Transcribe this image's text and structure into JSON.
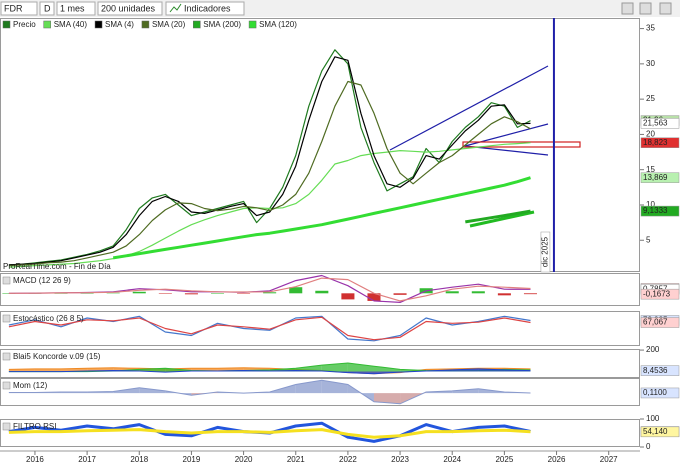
{
  "toolbar": {
    "symbol": "FDR",
    "mode": "D",
    "period": "1 mes",
    "units": "200 unidades",
    "indicators": "Indicadores"
  },
  "source": "ProRealTime.com - Fin de Día",
  "chart_data": [
    {
      "type": "line",
      "x": [
        2015.5,
        2015.75,
        2016,
        2016.25,
        2016.5,
        2016.75,
        2017,
        2017.25,
        2017.5,
        2017.75,
        2018,
        2018.25,
        2018.5,
        2018.75,
        2019,
        2019.25,
        2019.5,
        2019.75,
        2020,
        2020.25,
        2020.5,
        2020.75,
        2021,
        2021.25,
        2021.5,
        2021.75,
        2022,
        2022.25,
        2022.5,
        2022.75,
        2023,
        2023.25,
        2023.5,
        2023.75,
        2024,
        2024.25,
        2024.5,
        2024.75,
        2025,
        2025.25,
        2025.5
      ],
      "xlim": [
        2015.33,
        2027.6
      ],
      "xticks": [
        2016,
        2017,
        2018,
        2019,
        2020,
        2021,
        2022,
        2023,
        2024,
        2025,
        2026,
        2027
      ],
      "ylim": [
        0.5,
        36.5
      ],
      "yticks": [
        5,
        10,
        15,
        20,
        25,
        30,
        35
      ],
      "series": [
        {
          "name": "Precio",
          "color": "#1f7a1f",
          "style": "line",
          "values": [
            1.5,
            1.6,
            1.8,
            2.0,
            2.2,
            2.6,
            3.0,
            3.5,
            4.2,
            6.5,
            9.5,
            11.0,
            11.5,
            10.0,
            8.5,
            9.0,
            9.5,
            10.0,
            10.5,
            7.5,
            9.5,
            12.5,
            17,
            24,
            29,
            32,
            30,
            21,
            16,
            12,
            13,
            14,
            18,
            16,
            19,
            21,
            22.5,
            24.5,
            24,
            21,
            21.96
          ]
        },
        {
          "name": "SMA (40)",
          "color": "#66dd55",
          "style": "line",
          "values": [
            1.2,
            1.3,
            1.4,
            1.5,
            1.6,
            1.7,
            1.9,
            2.1,
            2.4,
            2.8,
            3.4,
            4.3,
            5.3,
            6.3,
            7.2,
            7.9,
            8.5,
            9.0,
            9.5,
            9.6,
            9.5,
            9.6,
            10.2,
            11.5,
            13.5,
            15.8,
            16.3,
            17,
            17.3,
            17.5,
            17.7,
            17.6,
            17.5,
            17.6,
            17.8,
            18,
            18.2,
            18.4,
            18.6,
            18.7,
            18.823
          ]
        },
        {
          "name": "SMA (4)",
          "color": "#000000",
          "style": "line",
          "values": [
            1.5,
            1.6,
            1.7,
            1.9,
            2.1,
            2.5,
            2.9,
            3.3,
            4.0,
            5.8,
            8.5,
            10.5,
            11.2,
            10.5,
            9.0,
            8.8,
            9.3,
            9.8,
            10.2,
            8.5,
            9.0,
            11.5,
            15.5,
            22,
            27.5,
            31,
            30.5,
            23,
            17,
            13,
            12.5,
            13.8,
            17,
            16.5,
            18.5,
            20.5,
            22,
            24,
            24.2,
            21.5,
            21.563
          ]
        },
        {
          "name": "SMA (20)",
          "color": "#4f6b22",
          "style": "line",
          "values": [
            1.4,
            1.5,
            1.6,
            1.8,
            1.9,
            2.1,
            2.5,
            2.9,
            3.3,
            4.2,
            5.8,
            7.8,
            9.3,
            10.3,
            10.2,
            9.5,
            9.2,
            9.4,
            9.8,
            9.6,
            9.2,
            10,
            11.5,
            14.5,
            19,
            24,
            27.5,
            27,
            23,
            18,
            14.5,
            13,
            14.5,
            16,
            17,
            18.5,
            20,
            21.5,
            22.5,
            21.8,
            20.8
          ]
        },
        {
          "name": "SMA (200)",
          "color": "#22aa22",
          "style": "thick-line",
          "values": [
            null,
            null,
            null,
            null,
            null,
            null,
            null,
            null,
            null,
            null,
            null,
            null,
            null,
            null,
            null,
            null,
            null,
            null,
            null,
            null,
            null,
            null,
            null,
            null,
            null,
            null,
            null,
            null,
            null,
            null,
            null,
            null,
            null,
            null,
            null,
            7.6,
            7.9,
            8.2,
            8.5,
            8.8,
            9.1333
          ]
        },
        {
          "name": "SMA (120)",
          "color": "#33dd33",
          "style": "thick-line",
          "values": [
            null,
            null,
            null,
            null,
            null,
            null,
            null,
            null,
            2.5,
            2.8,
            3.1,
            3.4,
            3.7,
            4.0,
            4.3,
            4.6,
            4.9,
            5.2,
            5.5,
            5.8,
            6.0,
            6.3,
            6.6,
            6.9,
            7.2,
            7.6,
            8.0,
            8.4,
            8.8,
            9.2,
            9.6,
            10.0,
            10.4,
            10.8,
            11.2,
            11.6,
            12.0,
            12.4,
            12.8,
            13.3,
            13.869
          ]
        }
      ],
      "axis_labels": [
        {
          "value": 21.96,
          "label": "21,96",
          "color": "#b8e0a8"
        },
        {
          "value": 21.563,
          "label": "21,563",
          "color": "#ffffff"
        },
        {
          "value": 18.823,
          "label": "18,823",
          "color": "#e03030"
        },
        {
          "value": 13.869,
          "label": "13,869",
          "color": "#b8f0b0"
        },
        {
          "value": 9.1333,
          "label": "9,1333",
          "color": "#22aa22"
        }
      ],
      "cursor": {
        "x": 2025.95,
        "label": "dic 2025",
        "color": "#1f1fa8"
      }
    },
    {
      "type": "line",
      "title": "MACD (12 26 9)",
      "x": [
        2015.5,
        2016,
        2016.5,
        2017,
        2017.5,
        2018,
        2018.5,
        2019,
        2019.5,
        2020,
        2020.5,
        2021,
        2021.5,
        2022,
        2022.5,
        2023,
        2023.5,
        2024,
        2024.5,
        2025,
        2025.5
      ],
      "ylim": [
        -2.5,
        4
      ],
      "series": [
        {
          "color": "#33bb33",
          "negative_color": "#d03030",
          "style": "bars",
          "values": [
            0,
            0.02,
            0.02,
            0.03,
            0.1,
            0.3,
            -0.1,
            -0.2,
            0,
            -0.05,
            0.2,
            1.2,
            0.5,
            -1.2,
            -1.5,
            -0.3,
            1.0,
            0.4,
            0.4,
            -0.4,
            -0.1673
          ]
        },
        {
          "color": "#9933aa",
          "style": "line",
          "values": [
            0,
            0.05,
            0.1,
            0.15,
            0.3,
            0.9,
            0.7,
            0.3,
            0.3,
            0.2,
            0.5,
            2.5,
            3.5,
            1.5,
            -1.5,
            -1.8,
            0.5,
            1.2,
            1.8,
            0.8,
            0.7857
          ]
        },
        {
          "color": "#e08080",
          "style": "line",
          "values": [
            0,
            0.03,
            0.08,
            0.12,
            0.2,
            0.6,
            0.8,
            0.5,
            0.3,
            0.25,
            0.3,
            1.3,
            3.0,
            2.7,
            0,
            -1.5,
            -0.5,
            0.8,
            1.4,
            1.2,
            0.953
          ]
        }
      ],
      "axis_labels": [
        {
          "value": 0.953,
          "label": "0,9530",
          "color": "#f0c0c0"
        },
        {
          "value": 0.7857,
          "label": "0,7857",
          "color": "#ffffff"
        },
        {
          "value": -0.1673,
          "label": "-0,1673",
          "color": "#ffd0d0"
        }
      ]
    },
    {
      "type": "line",
      "title": "Estocástico (26 8 5)",
      "x": [
        2015.5,
        2016,
        2016.5,
        2017,
        2017.5,
        2018,
        2018.5,
        2019,
        2019.5,
        2020,
        2020.5,
        2021,
        2021.5,
        2022,
        2022.5,
        2023,
        2023.5,
        2024,
        2024.5,
        2025,
        2025.5
      ],
      "ylim": [
        0,
        100
      ],
      "series": [
        {
          "color": "#4477cc",
          "style": "line",
          "values": [
            60,
            75,
            55,
            80,
            70,
            85,
            40,
            30,
            65,
            50,
            45,
            80,
            85,
            20,
            15,
            30,
            80,
            60,
            70,
            85,
            72.935
          ]
        },
        {
          "color": "#dd4444",
          "style": "line",
          "values": [
            55,
            70,
            60,
            75,
            72,
            80,
            50,
            35,
            60,
            55,
            48,
            75,
            82,
            30,
            18,
            25,
            70,
            65,
            68,
            80,
            67.067
          ]
        }
      ],
      "axis_labels": [
        {
          "value": 72.935,
          "label": "72,935",
          "color": "#d8e4ff"
        },
        {
          "value": 67.067,
          "label": "67,067",
          "color": "#ffd0d0"
        }
      ]
    },
    {
      "type": "line",
      "title": "Blai5 Koncorde v.09 (15)",
      "x": [
        2015.5,
        2016,
        2016.5,
        2017,
        2017.5,
        2018,
        2018.5,
        2019,
        2019.5,
        2020,
        2020.5,
        2021,
        2021.5,
        2022,
        2022.5,
        2023,
        2023.5,
        2024,
        2024.5,
        2025,
        2025.5
      ],
      "ylim": [
        -60,
        210
      ],
      "yticks": [
        200
      ],
      "series": [
        {
          "color": "#f08a24",
          "style": "area",
          "values": [
            20,
            25,
            25,
            30,
            35,
            30,
            25,
            30,
            30,
            35,
            30,
            20,
            10,
            -10,
            -20,
            -10,
            20,
            25,
            30,
            30,
            25
          ]
        },
        {
          "color": "#33bb33",
          "style": "area",
          "values": [
            0,
            0,
            0,
            0,
            5,
            20,
            30,
            10,
            5,
            10,
            15,
            30,
            60,
            80,
            50,
            20,
            10,
            5,
            10,
            20,
            15
          ]
        },
        {
          "color": "#2244cc",
          "style": "area",
          "values": [
            0,
            0,
            0,
            5,
            10,
            5,
            -5,
            5,
            5,
            10,
            5,
            10,
            5,
            -10,
            -20,
            -5,
            5,
            15,
            25,
            15,
            8.4536
          ]
        }
      ],
      "axis_labels": [
        {
          "value": 8.4536,
          "label": "8,4536",
          "color": "#d8e4ff"
        }
      ]
    },
    {
      "type": "line",
      "title": "Mom (12)",
      "x": [
        2015.5,
        2016,
        2016.5,
        2017,
        2017.5,
        2018,
        2018.5,
        2019,
        2019.5,
        2020,
        2020.5,
        2021,
        2021.5,
        2022,
        2022.5,
        2023,
        2023.5,
        2024,
        2024.5,
        2025,
        2025.5
      ],
      "ylim": [
        -12,
        14
      ],
      "series": [
        {
          "color": "#8899cc",
          "negative_color": "#c89090",
          "style": "area",
          "values": [
            0.5,
            0.5,
            1,
            1,
            1.5,
            5,
            2,
            -2,
            1,
            0,
            1,
            8,
            12,
            8,
            -8,
            -10,
            1,
            2,
            4,
            1,
            0.11
          ]
        }
      ],
      "axis_labels": [
        {
          "value": 0.11,
          "label": "0,1100",
          "color": "#d8e4ff"
        }
      ]
    },
    {
      "type": "line",
      "title": "FILTRO RSI",
      "x": [
        2015.5,
        2016,
        2016.5,
        2017,
        2017.5,
        2018,
        2018.5,
        2019,
        2019.5,
        2020,
        2020.5,
        2021,
        2021.5,
        2022,
        2022.5,
        2023,
        2023.5,
        2024,
        2024.5,
        2025,
        2025.5
      ],
      "ylim": [
        0,
        100
      ],
      "yticks": [
        100,
        0
      ],
      "series": [
        {
          "color": "#2255dd",
          "style": "thick-line",
          "values": [
            55,
            70,
            60,
            75,
            65,
            80,
            45,
            40,
            70,
            55,
            50,
            75,
            85,
            35,
            20,
            40,
            80,
            55,
            70,
            75,
            55.22
          ]
        },
        {
          "color": "#f5e020",
          "style": "thick-line",
          "values": [
            52,
            55,
            55,
            58,
            60,
            62,
            55,
            50,
            55,
            55,
            52,
            58,
            62,
            45,
            35,
            40,
            55,
            55,
            58,
            60,
            54.14
          ]
        }
      ],
      "axis_labels": [
        {
          "value": 55.22,
          "label": "55,220",
          "color": "#d8e4ff"
        },
        {
          "value": 54.14,
          "label": "54,140",
          "color": "#fff6a0"
        }
      ]
    }
  ]
}
